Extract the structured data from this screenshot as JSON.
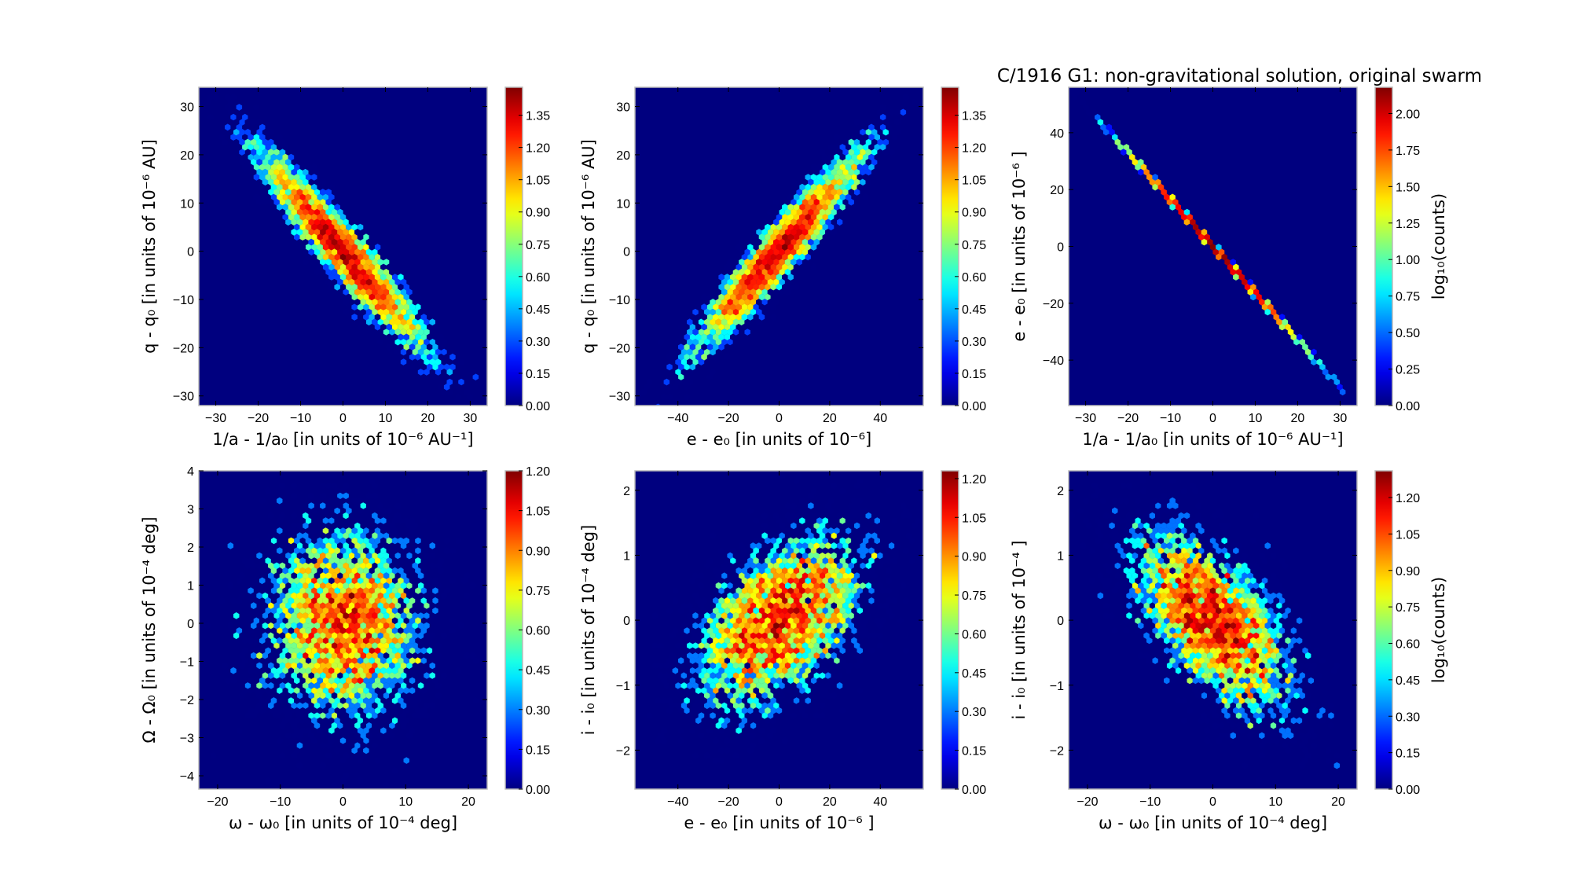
{
  "title": "C/1916 G1:  non-gravitational solution, original swarm",
  "colors": {
    "background": "#00007f",
    "frame": "#bbbbbb"
  },
  "chart_data": [
    {
      "type": "hexbin",
      "xlabel": "1/a - 1/a₀ [in units of 10⁻⁶ AU⁻¹]",
      "ylabel": "q - q₀ [in units of 10⁻⁶ AU]",
      "xlim": [
        -34,
        34
      ],
      "ylim": [
        -32,
        34
      ],
      "xticks": [
        -30,
        -20,
        -10,
        0,
        10,
        20,
        30
      ],
      "yticks": [
        -30,
        -20,
        -10,
        0,
        10,
        20,
        30
      ],
      "colorbar": {
        "label": "",
        "max": 1.48,
        "ticks": [
          "0.00",
          "0.15",
          "0.30",
          "0.45",
          "0.60",
          "0.75",
          "0.90",
          "1.05",
          "1.20",
          "1.35"
        ]
      },
      "distribution": {
        "mean": [
          0,
          0
        ],
        "std": [
          10,
          10.5
        ],
        "correlation": -0.95
      }
    },
    {
      "type": "hexbin",
      "xlabel": "e - e₀ [in units of 10⁻⁶]",
      "ylabel": "q - q₀ [in units of 10⁻⁶ AU]",
      "xlim": [
        -57,
        57
      ],
      "ylim": [
        -32,
        34
      ],
      "xticks": [
        -40,
        -20,
        0,
        20,
        40
      ],
      "yticks": [
        -30,
        -20,
        -10,
        0,
        10,
        20,
        30
      ],
      "colorbar": {
        "label": "",
        "max": 1.48,
        "ticks": [
          "0.00",
          "0.15",
          "0.30",
          "0.45",
          "0.60",
          "0.75",
          "0.90",
          "1.05",
          "1.20",
          "1.35"
        ]
      },
      "distribution": {
        "mean": [
          0,
          0
        ],
        "std": [
          17,
          10.5
        ],
        "correlation": 0.95
      }
    },
    {
      "type": "hexbin",
      "xlabel": "1/a - 1/a₀ [in units of 10⁻⁶ AU⁻¹]",
      "ylabel": "e - e₀ [in units of 10⁻⁶ ]",
      "xlim": [
        -34,
        34
      ],
      "ylim": [
        -56,
        56
      ],
      "xticks": [
        -30,
        -20,
        -10,
        0,
        10,
        20,
        30
      ],
      "yticks": [
        -40,
        -20,
        0,
        20,
        40
      ],
      "colorbar": {
        "label": "log₁₀(counts)",
        "max": 2.18,
        "ticks": [
          "0.00",
          "0.25",
          "0.50",
          "0.75",
          "1.00",
          "1.25",
          "1.50",
          "1.75",
          "2.00"
        ]
      },
      "distribution": {
        "mean": [
          0,
          0
        ],
        "std": [
          10,
          16.5
        ],
        "correlation": -0.9998
      }
    },
    {
      "type": "hexbin",
      "xlabel": "ω - ω₀ [in units of 10⁻⁴ deg]",
      "ylabel": "Ω - Ω₀ [in units of 10⁻⁴ deg]",
      "xlim": [
        -23,
        23
      ],
      "ylim": [
        -4.35,
        4.0
      ],
      "xticks": [
        -20,
        -10,
        0,
        10,
        20
      ],
      "yticks": [
        -4,
        -3,
        -2,
        -1,
        0,
        1,
        2,
        3,
        4
      ],
      "colorbar": {
        "label": "",
        "max": 1.2,
        "ticks": [
          "0.00",
          "0.15",
          "0.30",
          "0.45",
          "0.60",
          "0.75",
          "0.90",
          "1.05",
          "1.20"
        ]
      },
      "distribution": {
        "mean": [
          0,
          0
        ],
        "std": [
          6.5,
          1.3
        ],
        "correlation": 0.0
      }
    },
    {
      "type": "hexbin",
      "xlabel": "e - e₀ [in units of 10⁻⁶ ]",
      "ylabel": "i - i₀ [in units of 10⁻⁴ deg]",
      "xlim": [
        -57,
        57
      ],
      "ylim": [
        -2.6,
        2.3
      ],
      "xticks": [
        -40,
        -20,
        0,
        20,
        40
      ],
      "yticks": [
        -2,
        -1,
        0,
        1,
        2
      ],
      "colorbar": {
        "label": "",
        "max": 1.23,
        "ticks": [
          "0.00",
          "0.15",
          "0.30",
          "0.45",
          "0.60",
          "0.75",
          "0.90",
          "1.05",
          "1.20"
        ]
      },
      "distribution": {
        "mean": [
          0,
          0
        ],
        "std": [
          17,
          0.7
        ],
        "correlation": 0.5
      }
    },
    {
      "type": "hexbin",
      "xlabel": "ω - ω₀ [in units of 10⁻⁴ deg]",
      "ylabel": "i - i₀ [in units of 10⁻⁴ ]",
      "xlim": [
        -23,
        23
      ],
      "ylim": [
        -2.6,
        2.3
      ],
      "xticks": [
        -20,
        -10,
        0,
        10,
        20
      ],
      "yticks": [
        -2,
        -1,
        0,
        1,
        2
      ],
      "colorbar": {
        "label": "log₁₀(counts)",
        "max": 1.31,
        "ticks": [
          "0.00",
          "0.15",
          "0.30",
          "0.45",
          "0.60",
          "0.75",
          "0.90",
          "1.05",
          "1.20"
        ]
      },
      "distribution": {
        "mean": [
          0,
          0
        ],
        "std": [
          6.5,
          0.7
        ],
        "correlation": -0.6
      }
    }
  ]
}
